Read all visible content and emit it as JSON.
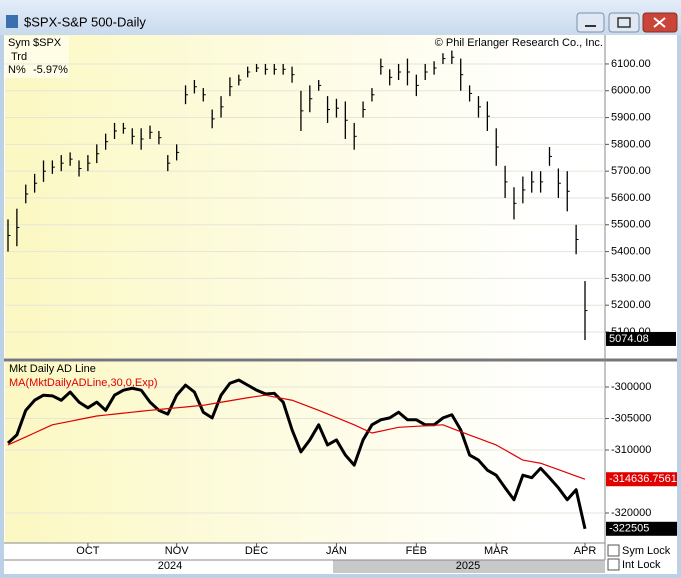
{
  "window": {
    "title": "$SPX-S&P 500-Daily"
  },
  "info": {
    "sym_label": "Sym",
    "sym": "$SPX",
    "trd": "Trd",
    "n_label": "N%",
    "n_value": "-5.97%"
  },
  "copyright": "© Phil Erlanger Research Co., Inc.",
  "years": [
    "2024",
    "2025"
  ],
  "controls": [
    "Sym Lock",
    "Int Lock"
  ],
  "chart_data": [
    {
      "type": "range",
      "color": "#000000",
      "high": [
        5520,
        5560,
        5650,
        5690,
        5740,
        5740,
        5760,
        5770,
        5740,
        5760,
        5800,
        5840,
        5880,
        5880,
        5860,
        5860,
        5870,
        5850,
        5760,
        5800,
        6020,
        6040,
        6010,
        5930,
        5980,
        6050,
        6060,
        6090,
        6100,
        6100,
        6100,
        6100,
        6090,
        6000,
        6020,
        6040,
        5980,
        5970,
        5960,
        5880,
        5960,
        6010,
        6120,
        6080,
        6100,
        6120,
        6060,
        6100,
        6110,
        6140,
        6150,
        6120,
        6020,
        5980,
        5960,
        5860,
        5720,
        5640,
        5680,
        5700,
        5700,
        5790,
        5710,
        5700,
        5500,
        5290
      ],
      "low": [
        5400,
        5420,
        5580,
        5620,
        5660,
        5690,
        5700,
        5720,
        5680,
        5700,
        5730,
        5780,
        5820,
        5840,
        5800,
        5780,
        5820,
        5800,
        5700,
        5740,
        5950,
        5990,
        5960,
        5860,
        5900,
        5980,
        6020,
        6050,
        6070,
        6060,
        6060,
        6060,
        6030,
        5850,
        5920,
        6000,
        5880,
        5900,
        5820,
        5780,
        5900,
        5960,
        6060,
        6020,
        6040,
        6020,
        5980,
        6040,
        6060,
        6100,
        6100,
        6000,
        5960,
        5900,
        5850,
        5720,
        5600,
        5520,
        5580,
        5620,
        5620,
        5720,
        5600,
        5550,
        5390,
        5070
      ],
      "last": 5074.08,
      "last_label": "5074.08",
      "ylim": [
        5003,
        6208
      ],
      "yticks": [
        {
          "value": 5100,
          "label": "5100.00"
        },
        {
          "value": 5200,
          "label": "5200.00"
        },
        {
          "value": 5300,
          "label": "5300.00"
        },
        {
          "value": 5400,
          "label": "5400.00"
        },
        {
          "value": 5500,
          "label": "5500.00"
        },
        {
          "value": 5600,
          "label": "5600.00"
        },
        {
          "value": 5700,
          "label": "5700.00"
        },
        {
          "value": 5800,
          "label": "5800.00"
        },
        {
          "value": 5900,
          "label": "5900.00"
        },
        {
          "value": 6000,
          "label": "6000.00"
        },
        {
          "value": 6100,
          "label": "6100.00"
        }
      ]
    },
    {
      "type": "line",
      "categories": [
        null,
        null,
        null,
        null,
        null,
        null,
        null,
        null,
        null,
        "OCT",
        null,
        null,
        null,
        null,
        null,
        null,
        null,
        null,
        null,
        "NOV",
        null,
        null,
        null,
        null,
        null,
        null,
        null,
        null,
        "DEC",
        null,
        null,
        null,
        null,
        null,
        null,
        null,
        null,
        "JAN",
        null,
        null,
        null,
        null,
        null,
        null,
        null,
        null,
        "FEB",
        null,
        null,
        null,
        null,
        null,
        null,
        null,
        null,
        "MAR",
        null,
        null,
        null,
        null,
        null,
        null,
        null,
        null,
        null,
        "APR"
      ],
      "series": [
        {
          "name": "Mkt Daily AD Line",
          "color": "#000000",
          "values": [
            -308900,
            -307600,
            -303700,
            -302100,
            -301300,
            -301400,
            -302100,
            -300800,
            -302400,
            -303300,
            -302400,
            -303700,
            -301300,
            -300500,
            -300200,
            -300500,
            -302400,
            -303700,
            -304300,
            -301300,
            -299700,
            -300800,
            -304000,
            -304900,
            -301300,
            -299400,
            -298900,
            -299700,
            -300500,
            -301100,
            -301000,
            -302400,
            -306800,
            -310300,
            -308400,
            -306000,
            -309200,
            -308400,
            -310800,
            -312400,
            -308400,
            -306000,
            -305200,
            -304900,
            -304000,
            -305200,
            -305200,
            -306000,
            -306000,
            -304900,
            -304400,
            -306800,
            -310800,
            -311600,
            -313200,
            -314000,
            -316000,
            -317900,
            -314000,
            -314400,
            -312900,
            -314400,
            -316000,
            -317900,
            -316300,
            -322505
          ]
        },
        {
          "name": "MA(MktDailyADLine,30,0,Exp)",
          "color": "#e00000",
          "values": [
            -309200,
            -308560,
            -307920,
            -307280,
            -306640,
            -306000,
            -305720,
            -305440,
            -305160,
            -304880,
            -304600,
            -304450,
            -304300,
            -304150,
            -304000,
            -303850,
            -303700,
            -303570,
            -303430,
            -303300,
            -303170,
            -303030,
            -302900,
            -302660,
            -302420,
            -302180,
            -301940,
            -301700,
            -301500,
            -301300,
            -301570,
            -301830,
            -302100,
            -302630,
            -303170,
            -303700,
            -304280,
            -304850,
            -305430,
            -306000,
            -306650,
            -307300,
            -307000,
            -306700,
            -306400,
            -306320,
            -306240,
            -306160,
            -306080,
            -306000,
            -306550,
            -307100,
            -307630,
            -308150,
            -308680,
            -309200,
            -310000,
            -310800,
            -311600,
            -311850,
            -312100,
            -312610,
            -313110,
            -313620,
            -314130,
            -314636.7561
          ]
        }
      ],
      "ylim": [
        -324760,
        -296030
      ],
      "yticks": [
        -300000,
        -305000,
        -310000,
        -320000
      ]
    }
  ]
}
